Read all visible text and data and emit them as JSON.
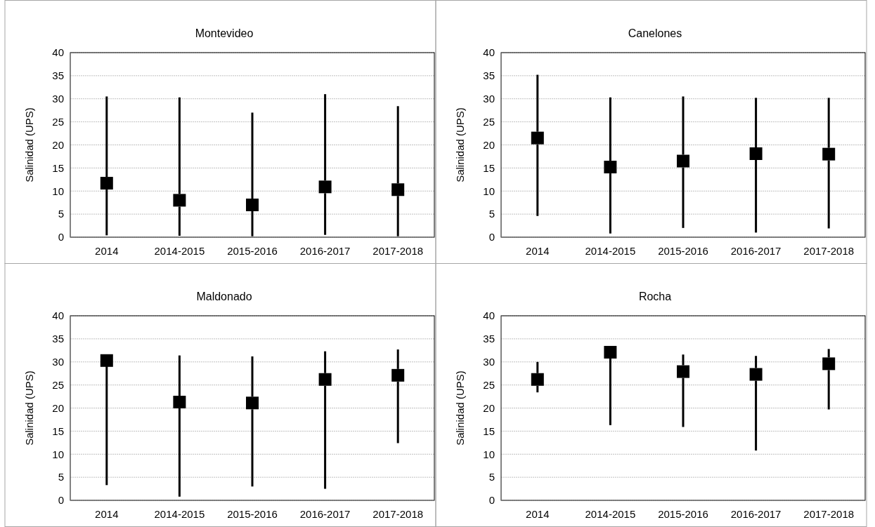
{
  "chart_data": [
    {
      "type": "scatter",
      "title": "Montevideo",
      "ylabel": "Salinidad (UPS)",
      "categories": [
        "2014",
        "2014-2015",
        "2015-2016",
        "2016-2017",
        "2017-2018"
      ],
      "values": [
        11.7,
        8.0,
        7.0,
        10.9,
        10.3
      ],
      "errors": [
        [
          0.4,
          30.5
        ],
        [
          0.3,
          30.3
        ],
        [
          0.2,
          27.0
        ],
        [
          0.5,
          31.0
        ],
        [
          0.2,
          28.4
        ]
      ],
      "color": "#000000",
      "marker": "square",
      "ylim": [
        0,
        40
      ],
      "yticks": [
        0,
        5,
        10,
        15,
        20,
        25,
        30,
        35,
        40
      ],
      "grid": "y"
    },
    {
      "type": "scatter",
      "title": "Canelones",
      "ylabel": "Salinidad (UPS)",
      "categories": [
        "2014",
        "2014-2015",
        "2015-2016",
        "2016-2017",
        "2017-2018"
      ],
      "values": [
        21.5,
        15.2,
        16.5,
        18.1,
        18.0
      ],
      "errors": [
        [
          4.6,
          35.2
        ],
        [
          0.8,
          30.3
        ],
        [
          2.0,
          30.5
        ],
        [
          1.0,
          30.2
        ],
        [
          1.9,
          30.2
        ]
      ],
      "color": "#000000",
      "marker": "square",
      "ylim": [
        0,
        40
      ],
      "yticks": [
        0,
        5,
        10,
        15,
        20,
        25,
        30,
        35,
        40
      ],
      "grid": "y"
    },
    {
      "type": "scatter",
      "title": "Maldonado",
      "ylabel": "Salinidad (UPS)",
      "categories": [
        "2014",
        "2014-2015",
        "2015-2016",
        "2016-2017",
        "2017-2018"
      ],
      "values": [
        30.3,
        21.3,
        21.1,
        26.2,
        27.1
      ],
      "errors": [
        [
          3.3,
          30.3
        ],
        [
          0.8,
          31.4
        ],
        [
          3.0,
          31.2
        ],
        [
          2.5,
          32.3
        ],
        [
          12.4,
          32.7
        ]
      ],
      "color": "#000000",
      "marker": "square",
      "ylim": [
        0,
        40
      ],
      "yticks": [
        0,
        5,
        10,
        15,
        20,
        25,
        30,
        35,
        40
      ],
      "grid": "y"
    },
    {
      "type": "scatter",
      "title": "Rocha",
      "ylabel": "Salinidad (UPS)",
      "categories": [
        "2014",
        "2014-2015",
        "2015-2016",
        "2016-2017",
        "2017-2018"
      ],
      "values": [
        26.2,
        32.1,
        27.9,
        27.3,
        29.6
      ],
      "errors": [
        [
          23.4,
          30.0
        ],
        [
          16.3,
          32.1
        ],
        [
          15.9,
          31.6
        ],
        [
          10.8,
          31.3
        ],
        [
          19.7,
          32.8
        ]
      ],
      "color": "#000000",
      "marker": "square",
      "ylim": [
        0,
        40
      ],
      "yticks": [
        0,
        5,
        10,
        15,
        20,
        25,
        30,
        35,
        40
      ],
      "grid": "y"
    }
  ]
}
